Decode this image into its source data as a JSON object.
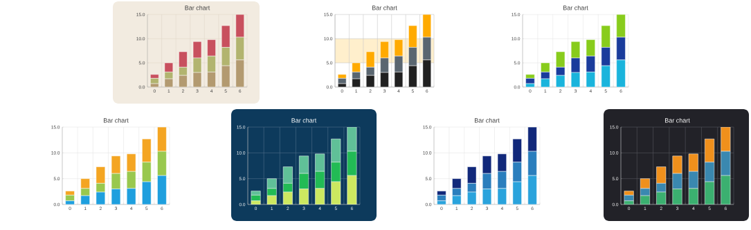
{
  "chart_data": [
    {
      "type": "bar",
      "title": "Bar chart",
      "stacked": true,
      "grid": true,
      "categories": [
        "0",
        "1",
        "2",
        "3",
        "4",
        "5",
        "6"
      ],
      "ylim": [
        0,
        15
      ],
      "yticks": [
        {
          "value": 0,
          "label": "0.0"
        },
        {
          "value": 5,
          "label": "5.0"
        },
        {
          "value": 10,
          "label": "10.0"
        },
        {
          "value": 15,
          "label": "15.0"
        }
      ],
      "series": [
        {
          "color": "#b39a70",
          "values": [
            0.7,
            1.7,
            2.4,
            3.0,
            3.1,
            4.4,
            5.6
          ]
        },
        {
          "color": "#b2b46f",
          "values": [
            1.1,
            1.4,
            1.7,
            3.0,
            3.3,
            3.8,
            4.7
          ]
        },
        {
          "color": "#c8505e",
          "values": [
            0.8,
            1.9,
            3.2,
            3.4,
            3.4,
            4.5,
            4.7
          ]
        }
      ]
    },
    {
      "type": "bar",
      "title": "Bar chart",
      "stacked": true,
      "grid": true,
      "categories": [
        "0",
        "1",
        "2",
        "3",
        "4",
        "5",
        "6"
      ],
      "ylim": [
        0,
        15
      ],
      "yticks": [
        {
          "value": 0,
          "label": "0.0"
        },
        {
          "value": 5,
          "label": "5.0"
        },
        {
          "value": 10,
          "label": "10.0"
        },
        {
          "value": 15,
          "label": "15.0"
        }
      ],
      "bands": [
        {
          "axis": "y",
          "from": 5,
          "to": 10,
          "color": "#ffefcc"
        }
      ],
      "series": [
        {
          "color": "#202020",
          "values": [
            0.7,
            1.7,
            2.4,
            3.0,
            3.1,
            4.4,
            5.6
          ]
        },
        {
          "color": "#5a6670",
          "values": [
            1.1,
            1.4,
            1.7,
            3.0,
            3.3,
            3.8,
            4.7
          ]
        },
        {
          "color": "#ffaa00",
          "values": [
            0.8,
            1.9,
            3.2,
            3.4,
            3.4,
            4.5,
            4.7
          ]
        }
      ]
    },
    {
      "type": "bar",
      "title": "Bar chart",
      "stacked": true,
      "grid": true,
      "categories": [
        "0",
        "1",
        "2",
        "3",
        "4",
        "5",
        "6"
      ],
      "ylim": [
        0,
        15
      ],
      "yticks": [
        {
          "value": 0,
          "label": "0.0"
        },
        {
          "value": 5,
          "label": "5.0"
        },
        {
          "value": 10,
          "label": "10.0"
        },
        {
          "value": 15,
          "label": "15.0"
        }
      ],
      "series": [
        {
          "color": "#1ab4dc",
          "values": [
            0.7,
            1.7,
            2.4,
            3.0,
            3.1,
            4.4,
            5.6
          ]
        },
        {
          "color": "#1a3c9c",
          "values": [
            1.1,
            1.4,
            1.7,
            3.0,
            3.3,
            3.8,
            4.7
          ]
        },
        {
          "color": "#88cc1c",
          "values": [
            0.8,
            1.9,
            3.2,
            3.4,
            3.4,
            4.5,
            4.7
          ]
        }
      ]
    },
    {
      "type": "bar",
      "title": "Bar chart",
      "stacked": true,
      "grid": true,
      "categories": [
        "0",
        "1",
        "2",
        "3",
        "4",
        "5",
        "6"
      ],
      "ylim": [
        0,
        15
      ],
      "yticks": [
        {
          "value": 0,
          "label": "0.0"
        },
        {
          "value": 5,
          "label": "5.0"
        },
        {
          "value": 10,
          "label": "10.0"
        },
        {
          "value": 15,
          "label": "15.0"
        }
      ],
      "series": [
        {
          "color": "#1e9fde",
          "values": [
            0.7,
            1.7,
            2.4,
            3.0,
            3.1,
            4.4,
            5.6
          ]
        },
        {
          "color": "#99c84e",
          "values": [
            1.1,
            1.4,
            1.7,
            3.0,
            3.3,
            3.8,
            4.7
          ]
        },
        {
          "color": "#f4a522",
          "values": [
            0.8,
            1.9,
            3.2,
            3.4,
            3.4,
            4.5,
            4.7
          ]
        }
      ]
    },
    {
      "type": "bar",
      "title": "Bar chart",
      "stacked": true,
      "grid": true,
      "categories": [
        "0",
        "1",
        "2",
        "3",
        "4",
        "5",
        "6"
      ],
      "ylim": [
        0,
        15
      ],
      "yticks": [
        {
          "value": 0,
          "label": "0.0"
        },
        {
          "value": 5,
          "label": "5.0"
        },
        {
          "value": 10,
          "label": "10.0"
        },
        {
          "value": 15,
          "label": "15.0"
        }
      ],
      "series": [
        {
          "color": "#cce860",
          "values": [
            0.7,
            1.7,
            2.4,
            3.0,
            3.1,
            4.4,
            5.6
          ]
        },
        {
          "color": "#22bb55",
          "values": [
            1.1,
            1.4,
            1.7,
            3.0,
            3.3,
            3.8,
            4.7
          ]
        },
        {
          "color": "#60c098",
          "values": [
            0.8,
            1.9,
            3.2,
            3.4,
            3.4,
            4.5,
            4.7
          ]
        }
      ]
    },
    {
      "type": "bar",
      "title": "Bar chart",
      "stacked": true,
      "grid": true,
      "categories": [
        "0",
        "1",
        "2",
        "3",
        "4",
        "5",
        "6"
      ],
      "ylim": [
        0,
        15
      ],
      "yticks": [
        {
          "value": 0,
          "label": "0.0"
        },
        {
          "value": 5,
          "label": "5.0"
        },
        {
          "value": 10,
          "label": "10.0"
        },
        {
          "value": 15,
          "label": "15.0"
        }
      ],
      "series": [
        {
          "color": "#2aa3dc",
          "values": [
            0.7,
            1.7,
            2.4,
            3.0,
            3.1,
            4.4,
            5.6
          ]
        },
        {
          "color": "#2a7ebd",
          "values": [
            1.1,
            1.4,
            1.7,
            3.0,
            3.3,
            3.8,
            4.7
          ]
        },
        {
          "color": "#11287a",
          "values": [
            0.8,
            1.9,
            3.2,
            3.4,
            3.4,
            4.5,
            4.7
          ]
        }
      ]
    },
    {
      "type": "bar",
      "title": "Bar chart",
      "stacked": true,
      "grid": true,
      "categories": [
        "0",
        "1",
        "2",
        "3",
        "4",
        "5",
        "6"
      ],
      "ylim": [
        0,
        15
      ],
      "yticks": [
        {
          "value": 0,
          "label": "0.0"
        },
        {
          "value": 5,
          "label": "5.0"
        },
        {
          "value": 10,
          "label": "10.0"
        },
        {
          "value": 15,
          "label": "15.0"
        }
      ],
      "series": [
        {
          "color": "#3bb070",
          "values": [
            0.7,
            1.7,
            2.4,
            3.0,
            3.1,
            4.4,
            5.6
          ]
        },
        {
          "color": "#3a88b0",
          "values": [
            1.1,
            1.4,
            1.7,
            3.0,
            3.3,
            3.8,
            4.7
          ]
        },
        {
          "color": "#f0901c",
          "values": [
            0.8,
            1.9,
            3.2,
            3.4,
            3.4,
            4.5,
            4.7
          ]
        }
      ]
    }
  ]
}
